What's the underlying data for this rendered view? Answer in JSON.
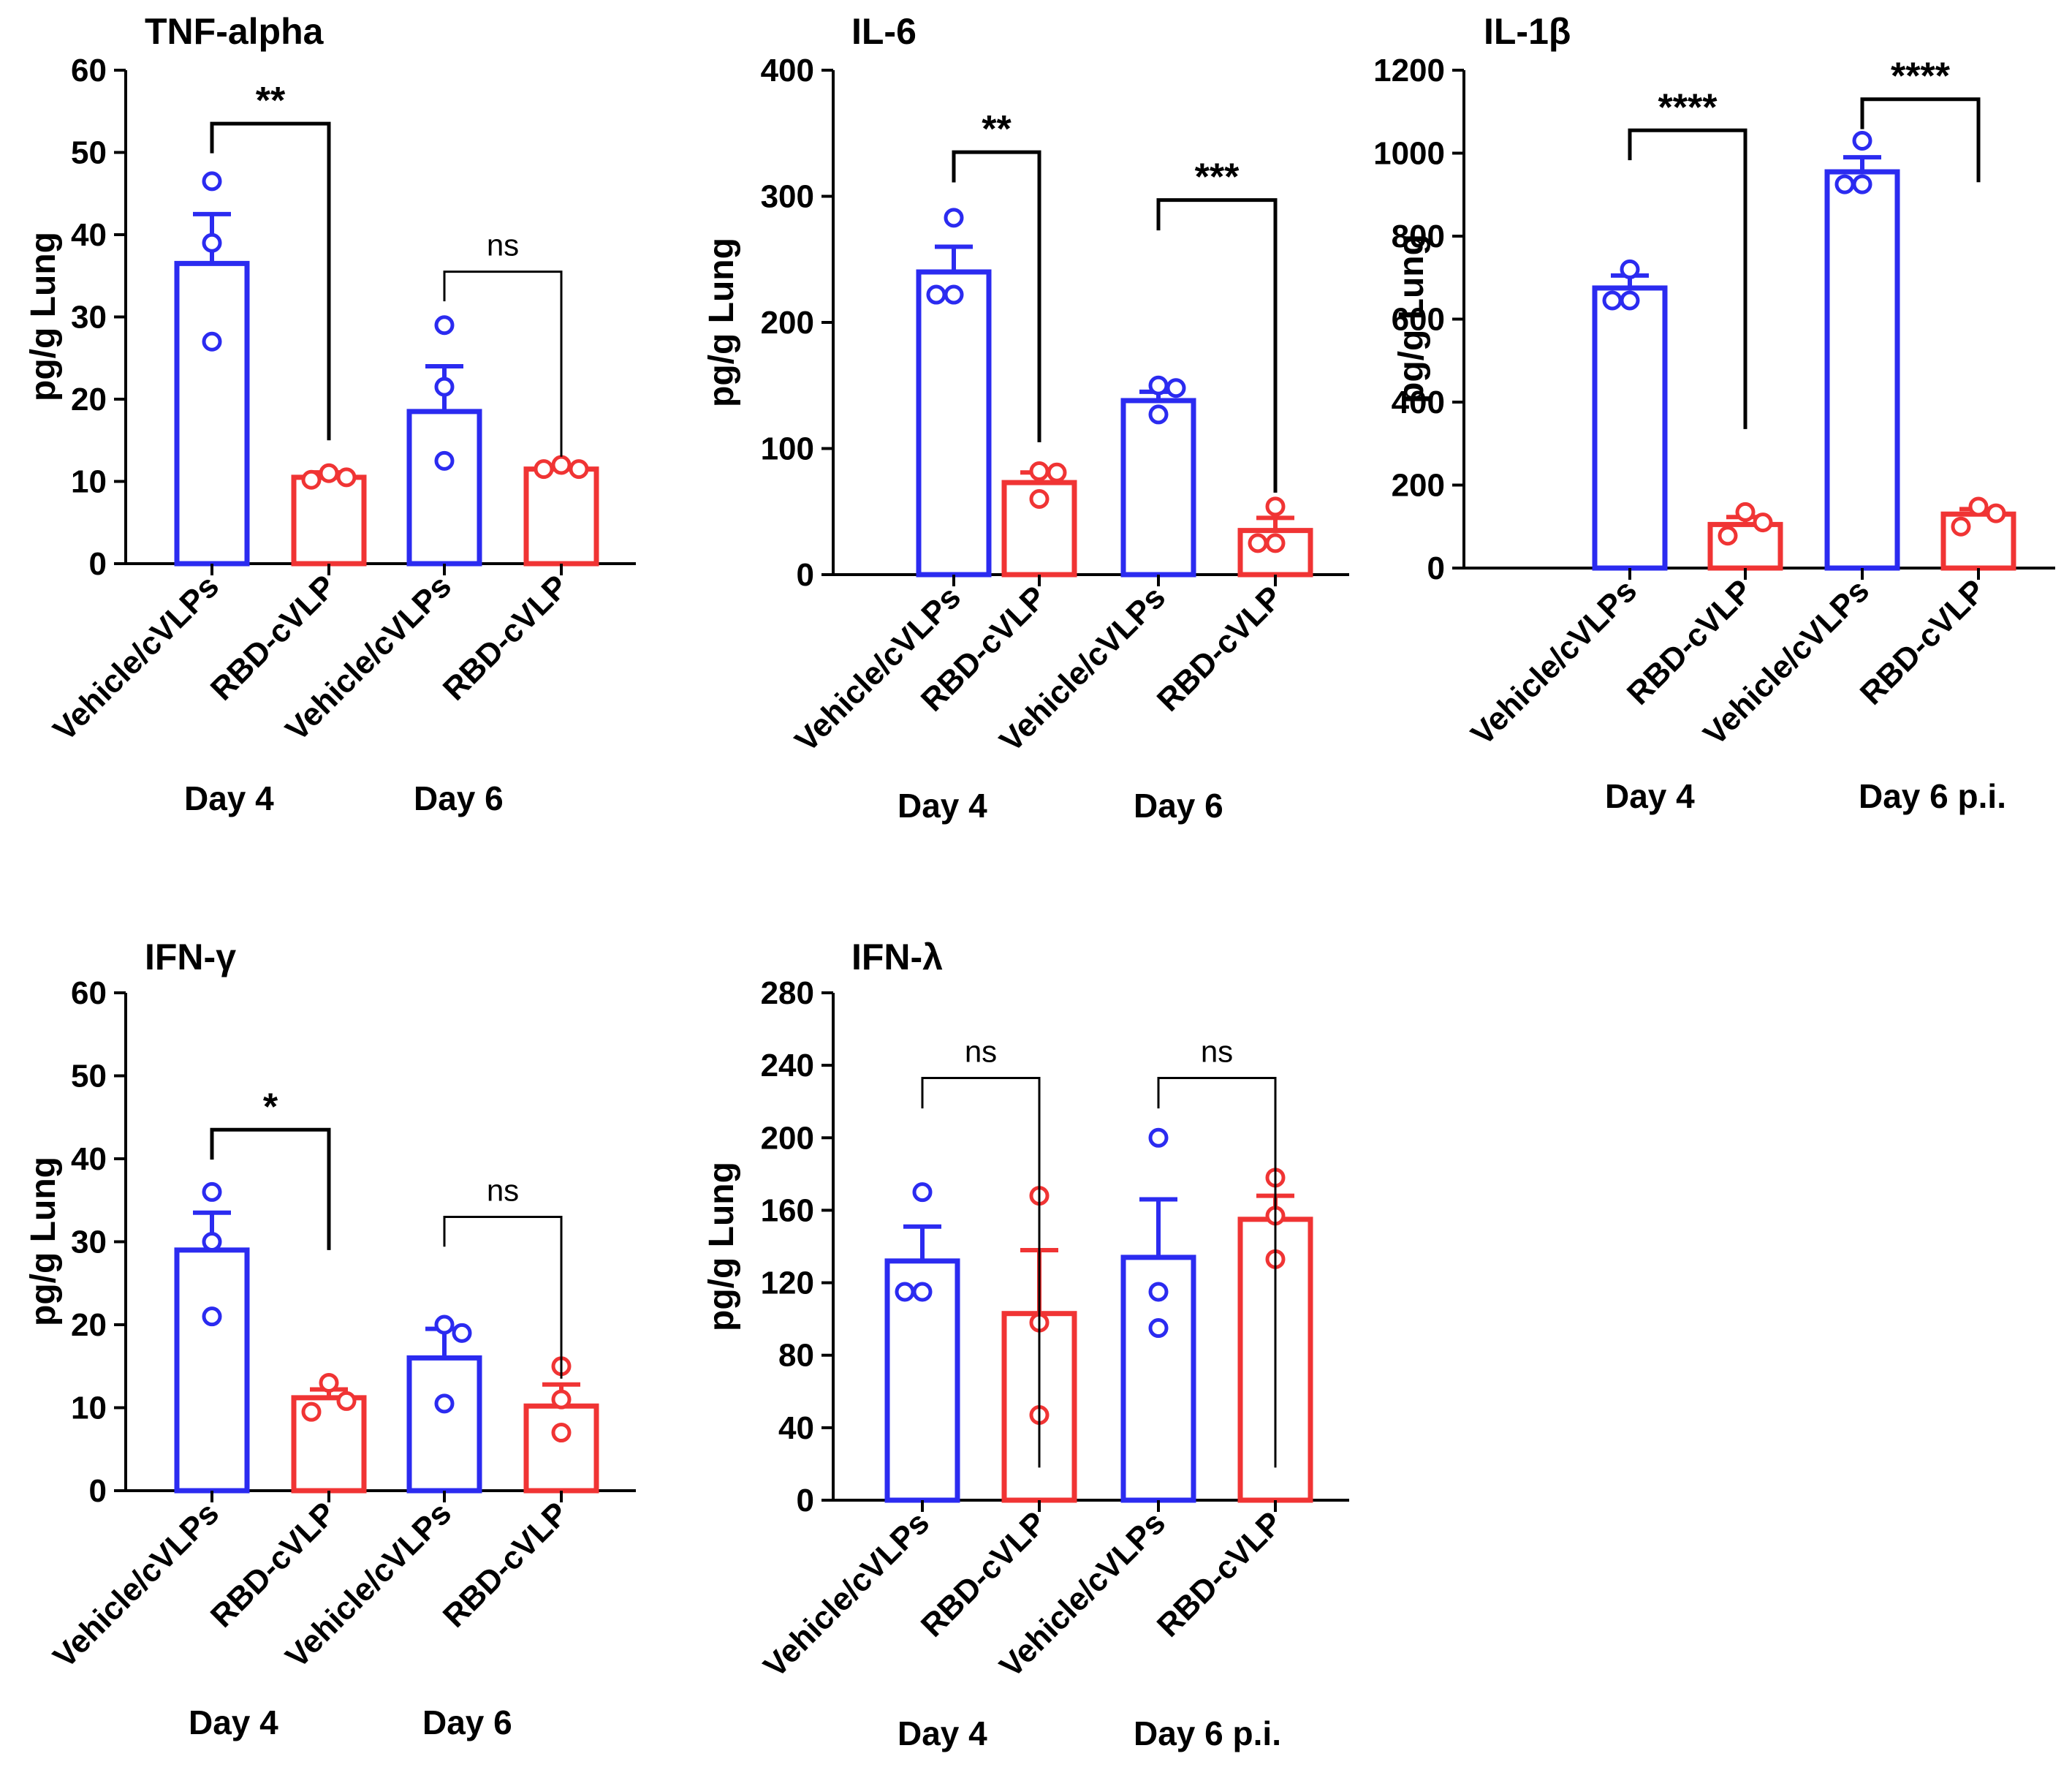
{
  "colors": {
    "vehicle": "#2b2bf0",
    "rbd": "#f03434",
    "axis": "#000000"
  },
  "chart_data": [
    {
      "type": "bar",
      "title": "TNF-alpha",
      "ylabel": "pg/g Lung",
      "ylim": [
        0,
        60
      ],
      "yticks": [
        0,
        10,
        20,
        30,
        40,
        50,
        60
      ],
      "categories": [
        "Vehicle/cVLPs",
        "RBD-cVLP",
        "Vehicle/cVLPs",
        "RBD-cVLP"
      ],
      "groups": [
        "Day 4",
        "Day 6"
      ],
      "series": [
        {
          "color_key": "vehicle",
          "group": 0,
          "mean": 36.5,
          "sem": 6,
          "points": [
            46.5,
            39,
            27
          ]
        },
        {
          "color_key": "rbd",
          "group": 0,
          "mean": 10.5,
          "sem": 0.6,
          "points": [
            10.2,
            11,
            10.5
          ]
        },
        {
          "color_key": "vehicle",
          "group": 1,
          "mean": 18.5,
          "sem": 5.5,
          "points": [
            29,
            21.5,
            12.5
          ]
        },
        {
          "color_key": "rbd",
          "group": 1,
          "mean": 11.5,
          "sem": 0.4,
          "points": [
            11.5,
            12,
            11.5
          ]
        }
      ],
      "significance": [
        {
          "from": 0,
          "to": 1,
          "label": "**",
          "y": 53.5,
          "drop": 15
        },
        {
          "from": 2,
          "to": 3,
          "label": "ns",
          "y": 35.5,
          "drop": 13
        }
      ]
    },
    {
      "type": "bar",
      "title": "IL-6",
      "ylabel": "pg/g Lung",
      "ylim": [
        0,
        400
      ],
      "yticks": [
        0,
        100,
        200,
        300,
        400
      ],
      "categories": [
        "Vehicle/cVLPs",
        "RBD-cVLP",
        "Vehicle/cVLPs",
        "RBD-cVLP"
      ],
      "groups": [
        "Day 4",
        "Day 6"
      ],
      "series": [
        {
          "color_key": "vehicle",
          "group": 0,
          "mean": 240,
          "sem": 20,
          "points": [
            283,
            222,
            222
          ]
        },
        {
          "color_key": "rbd",
          "group": 0,
          "mean": 73,
          "sem": 8,
          "points": [
            82,
            81,
            60
          ]
        },
        {
          "color_key": "vehicle",
          "group": 1,
          "mean": 138,
          "sem": 7,
          "points": [
            150,
            148,
            127
          ]
        },
        {
          "color_key": "rbd",
          "group": 1,
          "mean": 35,
          "sem": 10,
          "points": [
            54,
            25,
            25
          ]
        }
      ],
      "significance": [
        {
          "from": 0,
          "to": 1,
          "label": "**",
          "y": 335,
          "drop": 105
        },
        {
          "from": 2,
          "to": 3,
          "label": "***",
          "y": 297,
          "drop": 65
        }
      ]
    },
    {
      "type": "bar",
      "title": "IL-1β",
      "ylabel": "pg/g Lung",
      "ylim": [
        0,
        1200
      ],
      "yticks": [
        0,
        200,
        400,
        600,
        800,
        1000,
        1200
      ],
      "categories": [
        "Vehicle/cVLPs",
        "RBD-cVLP",
        "Vehicle/cVLPs",
        "RBD-cVLP"
      ],
      "groups": [
        "Day 4",
        "Day 6 p.i."
      ],
      "series": [
        {
          "color_key": "vehicle",
          "group": 0,
          "mean": 675,
          "sem": 30,
          "points": [
            720,
            645,
            645
          ]
        },
        {
          "color_key": "rbd",
          "group": 0,
          "mean": 105,
          "sem": 18,
          "points": [
            135,
            110,
            78
          ]
        },
        {
          "color_key": "vehicle",
          "group": 1,
          "mean": 955,
          "sem": 35,
          "points": [
            1030,
            925,
            925
          ]
        },
        {
          "color_key": "rbd",
          "group": 1,
          "mean": 130,
          "sem": 12,
          "points": [
            148,
            132,
            100
          ]
        }
      ],
      "significance": [
        {
          "from": 0,
          "to": 1,
          "label": "****",
          "y": 1055,
          "drop": 335
        },
        {
          "from": 2,
          "to": 3,
          "label": "****",
          "y": 1130,
          "drop": 930
        }
      ]
    },
    {
      "type": "bar",
      "title": "IFN-γ",
      "ylabel": "pg/g Lung",
      "ylim": [
        0,
        60
      ],
      "yticks": [
        0,
        10,
        20,
        30,
        40,
        50,
        60
      ],
      "categories": [
        "Vehicle/cVLPs",
        "RBD-cVLP",
        "Vehicle/cVLPs",
        "RBD-cVLP"
      ],
      "groups": [
        "Day 4",
        "Day 6"
      ],
      "series": [
        {
          "color_key": "vehicle",
          "group": 0,
          "mean": 29,
          "sem": 4.5,
          "points": [
            36,
            30,
            21
          ]
        },
        {
          "color_key": "rbd",
          "group": 0,
          "mean": 11.2,
          "sem": 1,
          "points": [
            13,
            10.8,
            9.5
          ]
        },
        {
          "color_key": "vehicle",
          "group": 1,
          "mean": 16,
          "sem": 3.5,
          "points": [
            20,
            19,
            10.5
          ]
        },
        {
          "color_key": "rbd",
          "group": 1,
          "mean": 10.2,
          "sem": 2.6,
          "points": [
            15,
            11,
            7
          ]
        }
      ],
      "significance": [
        {
          "from": 0,
          "to": 1,
          "label": "*",
          "y": 43.5,
          "drop": 29
        },
        {
          "from": 2,
          "to": 3,
          "label": "ns",
          "y": 33,
          "drop": 13.5
        }
      ]
    },
    {
      "type": "bar",
      "title": "IFN-λ",
      "ylabel": "pg/g Lung",
      "ylim": [
        0,
        280
      ],
      "yticks": [
        0,
        40,
        80,
        120,
        160,
        200,
        240,
        280
      ],
      "categories": [
        "Vehicle/cVLPs",
        "RBD-cVLP",
        "Vehicle/cVLPs",
        "RBD-cVLP"
      ],
      "groups": [
        "Day 4",
        "Day 6 p.i."
      ],
      "series": [
        {
          "color_key": "vehicle",
          "group": 0,
          "mean": 132,
          "sem": 19,
          "points": [
            170,
            115,
            115
          ]
        },
        {
          "color_key": "rbd",
          "group": 0,
          "mean": 103,
          "sem": 35,
          "points": [
            168,
            98,
            47
          ]
        },
        {
          "color_key": "vehicle",
          "group": 1,
          "mean": 134,
          "sem": 32,
          "points": [
            200,
            115,
            95
          ]
        },
        {
          "color_key": "rbd",
          "group": 1,
          "mean": 155,
          "sem": 13,
          "points": [
            178,
            157,
            133
          ]
        }
      ],
      "significance": [
        {
          "from": 0,
          "to": 1,
          "label": "ns",
          "y": 233,
          "drop": 18
        },
        {
          "from": 2,
          "to": 3,
          "label": "ns",
          "y": 233,
          "drop": 18
        }
      ]
    }
  ]
}
